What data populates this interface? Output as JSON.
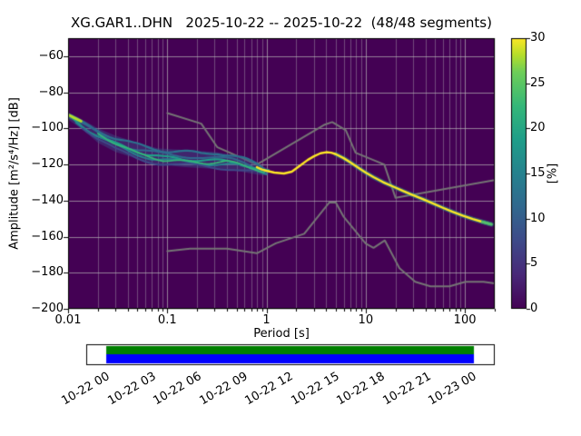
{
  "chart_data": {
    "type": "heatmap",
    "title": "XG.GAR1..DHN   2025-10-22 -- 2025-10-22  (48/48 segments)",
    "station": "XG.GAR1..DHN",
    "date_range": "2025-10-22 -- 2025-10-22",
    "segments": "48/48 segments",
    "xlabel": "Period [s]",
    "ylabel": "Amplitude [m²/s⁴/Hz] [dB]",
    "xscale": "log",
    "xlim": [
      0.01,
      200
    ],
    "ylim": [
      -200,
      -50
    ],
    "grid": true,
    "colormap": "viridis",
    "xticks": [
      {
        "v": 0.01,
        "label": "0.01"
      },
      {
        "v": 0.1,
        "label": "0.1"
      },
      {
        "v": 1,
        "label": "1"
      },
      {
        "v": 10,
        "label": "10"
      },
      {
        "v": 100,
        "label": "100"
      }
    ],
    "yticks": [
      {
        "v": -60,
        "label": "−60"
      },
      {
        "v": -80,
        "label": "−80"
      },
      {
        "v": -100,
        "label": "−100"
      },
      {
        "v": -120,
        "label": "−120"
      },
      {
        "v": -140,
        "label": "−140"
      },
      {
        "v": -160,
        "label": "−160"
      },
      {
        "v": -180,
        "label": "−180"
      },
      {
        "v": -200,
        "label": "−200"
      }
    ],
    "colorbar": {
      "label": "[%]",
      "min": 0,
      "max": 30,
      "ticks": [
        {
          "v": 0,
          "label": "0"
        },
        {
          "v": 5,
          "label": "5"
        },
        {
          "v": 10,
          "label": "10"
        },
        {
          "v": 15,
          "label": "15"
        },
        {
          "v": 20,
          "label": "20"
        },
        {
          "v": 25,
          "label": "25"
        },
        {
          "v": 30,
          "label": "30"
        }
      ]
    },
    "colors": {
      "plot_bg": "#440154",
      "grid_major": "rgba(185,185,185,0.85)",
      "grid_minor": "rgba(185,185,185,0.5)",
      "noise_model": "#757575",
      "envelope_fill": "rgba(59,82,139,0.45)",
      "psd_underlay": "rgba(33,145,140,0.55)",
      "psd_line": "#fde725",
      "psd_tail": "#35b779",
      "psd_tip": "#b5de2b",
      "timeline_green": "#008000",
      "timeline_blue": "#0000ff",
      "viridis_stops": [
        [
          0,
          "#440154"
        ],
        [
          0.125,
          "#482878"
        ],
        [
          0.25,
          "#3e4a89"
        ],
        [
          0.375,
          "#31688e"
        ],
        [
          0.5,
          "#26828e"
        ],
        [
          0.625,
          "#1f9e89"
        ],
        [
          0.75,
          "#35b779"
        ],
        [
          0.875,
          "#6ece58"
        ],
        [
          0.9375,
          "#b5de2b"
        ],
        [
          1,
          "#fde725"
        ]
      ]
    },
    "noise_models": {
      "nlnm": [
        [
          0.1,
          -168.0
        ],
        [
          0.17,
          -166.7
        ],
        [
          0.4,
          -166.7
        ],
        [
          0.8,
          -169.2
        ],
        [
          1.24,
          -163.7
        ],
        [
          2.4,
          -158.4
        ],
        [
          4.3,
          -141.1
        ],
        [
          5.0,
          -141.1
        ],
        [
          6.0,
          -149.0
        ],
        [
          10.0,
          -163.8
        ],
        [
          12.0,
          -166.2
        ],
        [
          15.6,
          -162.1
        ],
        [
          21.9,
          -177.5
        ],
        [
          31.6,
          -185.0
        ],
        [
          45.0,
          -187.5
        ],
        [
          70.0,
          -187.5
        ],
        [
          101.0,
          -185.0
        ],
        [
          154.0,
          -185.0
        ],
        [
          200.0,
          -185.9
        ]
      ],
      "nhnm": [
        [
          0.1,
          -91.5
        ],
        [
          0.22,
          -97.4
        ],
        [
          0.32,
          -110.5
        ],
        [
          0.8,
          -120.0
        ],
        [
          3.8,
          -98.1
        ],
        [
          4.6,
          -96.5
        ],
        [
          6.3,
          -101.0
        ],
        [
          7.9,
          -113.5
        ],
        [
          15.4,
          -120.0
        ],
        [
          20.0,
          -138.5
        ],
        [
          200.0,
          -128.6
        ]
      ]
    },
    "psd": {
      "tip": [
        [
          0.01,
          -92.5
        ],
        [
          0.0135,
          -96
        ]
      ],
      "envelope_top": [
        [
          0.01,
          -91
        ],
        [
          0.015,
          -96
        ],
        [
          0.02,
          -100
        ],
        [
          0.03,
          -104
        ],
        [
          0.05,
          -108
        ],
        [
          0.08,
          -111
        ],
        [
          0.15,
          -112
        ],
        [
          0.3,
          -113
        ],
        [
          0.5,
          -115
        ],
        [
          0.7,
          -118
        ],
        [
          0.9,
          -121
        ],
        [
          1.05,
          -122.5
        ]
      ],
      "envelope_bottom": [
        [
          0.01,
          -95
        ],
        [
          0.015,
          -102
        ],
        [
          0.02,
          -108
        ],
        [
          0.03,
          -113
        ],
        [
          0.05,
          -117
        ],
        [
          0.08,
          -120
        ],
        [
          0.15,
          -121.5
        ],
        [
          0.3,
          -122.5
        ],
        [
          0.5,
          -123.5
        ],
        [
          0.7,
          -125
        ],
        [
          0.9,
          -126
        ],
        [
          1.05,
          -125.5
        ]
      ],
      "strands": [
        {
          "color": "#2c728e",
          "width": 2.2,
          "amp": 1.8,
          "freq": 11,
          "phase": 0.5,
          "points": [
            [
              0.01,
              -92.5
            ],
            [
              0.014,
              -97
            ],
            [
              0.02,
              -101
            ],
            [
              0.03,
              -105.5
            ],
            [
              0.045,
              -108.5
            ],
            [
              0.07,
              -111
            ],
            [
              0.1,
              -112.5
            ],
            [
              0.15,
              -113
            ],
            [
              0.22,
              -114
            ],
            [
              0.32,
              -113.5
            ],
            [
              0.45,
              -115
            ],
            [
              0.6,
              -117
            ],
            [
              0.8,
              -120
            ],
            [
              1.0,
              -123
            ]
          ]
        },
        {
          "color": "#31688e",
          "width": 2.0,
          "amp": 2.2,
          "freq": 9,
          "phase": 2.1,
          "points": [
            [
              0.01,
              -93.5
            ],
            [
              0.015,
              -99
            ],
            [
              0.022,
              -104
            ],
            [
              0.035,
              -109
            ],
            [
              0.05,
              -112
            ],
            [
              0.08,
              -114
            ],
            [
              0.12,
              -115
            ],
            [
              0.2,
              -115.5
            ],
            [
              0.3,
              -116.5
            ],
            [
              0.45,
              -117.5
            ],
            [
              0.6,
              -119
            ],
            [
              0.8,
              -121.5
            ],
            [
              1.0,
              -123.5
            ]
          ]
        },
        {
          "color": "#1f9e89",
          "width": 2.2,
          "amp": 1.6,
          "freq": 12,
          "phase": 4.2,
          "points": [
            [
              0.011,
              -94.5
            ],
            [
              0.016,
              -101
            ],
            [
              0.024,
              -106.5
            ],
            [
              0.04,
              -111
            ],
            [
              0.06,
              -114
            ],
            [
              0.09,
              -116
            ],
            [
              0.14,
              -117
            ],
            [
              0.22,
              -117.5
            ],
            [
              0.35,
              -118
            ],
            [
              0.5,
              -119
            ],
            [
              0.7,
              -121
            ],
            [
              0.9,
              -123.5
            ],
            [
              1.05,
              -124
            ]
          ]
        },
        {
          "color": "#26828e",
          "width": 2.0,
          "amp": 2.0,
          "freq": 10,
          "phase": 1.2,
          "points": [
            [
              0.012,
              -96
            ],
            [
              0.018,
              -103
            ],
            [
              0.028,
              -109
            ],
            [
              0.045,
              -113.5
            ],
            [
              0.07,
              -116.5
            ],
            [
              0.11,
              -118
            ],
            [
              0.18,
              -119
            ],
            [
              0.28,
              -119.5
            ],
            [
              0.4,
              -120
            ],
            [
              0.55,
              -121
            ],
            [
              0.75,
              -123
            ],
            [
              1.0,
              -124.5
            ]
          ]
        },
        {
          "color": "#3e4a89",
          "width": 2.0,
          "amp": 2.4,
          "freq": 8.5,
          "phase": 5.0,
          "points": [
            [
              0.014,
              -99
            ],
            [
              0.02,
              -106
            ],
            [
              0.03,
              -112
            ],
            [
              0.05,
              -116.5
            ],
            [
              0.08,
              -119
            ],
            [
              0.13,
              -120.5
            ],
            [
              0.2,
              -121
            ],
            [
              0.3,
              -121.5
            ],
            [
              0.45,
              -122
            ],
            [
              0.65,
              -123.5
            ],
            [
              0.9,
              -125
            ],
            [
              1.05,
              -125
            ]
          ]
        },
        {
          "color": "#35b779",
          "width": 1.8,
          "amp": 1.5,
          "freq": 13,
          "phase": 3.0,
          "points": [
            [
              0.02,
              -103
            ],
            [
              0.03,
              -108
            ],
            [
              0.05,
              -114
            ],
            [
              0.09,
              -117.5
            ],
            [
              0.15,
              -118.5
            ],
            [
              0.25,
              -119
            ],
            [
              0.4,
              -118.5
            ],
            [
              0.55,
              -120
            ],
            [
              0.75,
              -122
            ],
            [
              0.95,
              -124
            ]
          ]
        }
      ],
      "main_line": [
        [
          0.8,
          -121.5
        ],
        [
          0.9,
          -122.8
        ],
        [
          1.0,
          -123.5
        ],
        [
          1.2,
          -124.5
        ],
        [
          1.5,
          -125
        ],
        [
          1.8,
          -124
        ],
        [
          2.2,
          -120.5
        ],
        [
          2.6,
          -117.5
        ],
        [
          3.0,
          -115.5
        ],
        [
          3.5,
          -113.8
        ],
        [
          4.0,
          -113.2
        ],
        [
          4.5,
          -113.5
        ],
        [
          5.0,
          -114.3
        ],
        [
          6.0,
          -116.5
        ],
        [
          7.0,
          -118.8
        ],
        [
          8.0,
          -121
        ],
        [
          9.0,
          -122.9
        ],
        [
          10,
          -124.5
        ],
        [
          12,
          -127
        ],
        [
          15,
          -129.8
        ],
        [
          19,
          -132.3
        ],
        [
          24,
          -134.8
        ],
        [
          30,
          -137
        ],
        [
          38,
          -139.3
        ],
        [
          48,
          -141.7
        ],
        [
          60,
          -144
        ],
        [
          75,
          -146.2
        ],
        [
          95,
          -148.3
        ],
        [
          120,
          -150.2
        ],
        [
          150,
          -151.8
        ],
        [
          185,
          -153.2
        ]
      ]
    },
    "timeline": {
      "labels": [
        "10-22 00",
        "10-22 03",
        "10-22 06",
        "10-22 09",
        "10-22 12",
        "10-22 15",
        "10-22 18",
        "10-22 21",
        "10-23 00"
      ],
      "coverage_frac": [
        0.049,
        0.949
      ]
    }
  }
}
